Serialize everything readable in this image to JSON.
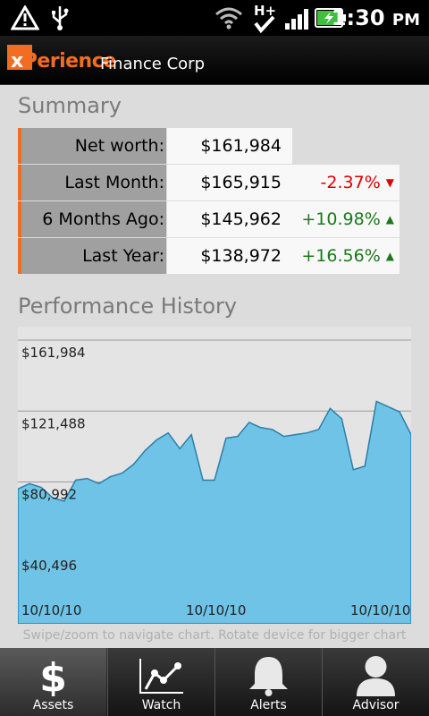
{
  "status_bar": {
    "time": "1:30",
    "ampm": "PM",
    "icons": [
      "warning-icon",
      "usb-icon",
      "wifi-icon",
      "hplus-data-icon",
      "signal-icon",
      "battery-charging-icon"
    ]
  },
  "header": {
    "logo_x": "x",
    "logo_rest": "Perience",
    "company": "Finance Corp"
  },
  "summary": {
    "title": "Summary",
    "rows": [
      {
        "label": "Net worth:",
        "value": "$161,984",
        "change": ""
      },
      {
        "label": "Last Month:",
        "value": "$165,915",
        "change": "-2.37%",
        "dir": "down"
      },
      {
        "label": "6 Months Ago:",
        "value": "$145,962",
        "change": "+10.98%",
        "dir": "up"
      },
      {
        "label": "Last Year:",
        "value": "$138,972",
        "change": "+16.56%",
        "dir": "up"
      }
    ]
  },
  "performance": {
    "title": "Performance History",
    "hint": "Swipe/zoom to navigate chart. Rotate device for bigger chart"
  },
  "chart_data": {
    "type": "area",
    "title": "",
    "xlabel": "",
    "ylabel": "",
    "ylim": [
      0,
      161984
    ],
    "y_ticks": [
      "$161,984",
      "$121,488",
      "$80,992",
      "$40,496"
    ],
    "x_tick_labels": [
      "10/10/10",
      "10/10/10",
      "10/10/10"
    ],
    "values": [
      77000,
      80000,
      78000,
      72000,
      70000,
      82000,
      83000,
      80000,
      84000,
      86000,
      91000,
      99000,
      105000,
      109000,
      100000,
      108000,
      82000,
      82000,
      106000,
      107000,
      115000,
      112000,
      111000,
      107000,
      108000,
      109000,
      111000,
      123000,
      117000,
      88000,
      90000,
      127000,
      124000,
      121000,
      108000
    ],
    "fill_color": "#6fc3e6",
    "line_color": "#2a7fa8",
    "grid": true
  },
  "tabs": [
    {
      "label": "Assets",
      "icon": "dollar-icon",
      "active": true
    },
    {
      "label": "Watch",
      "icon": "line-chart-icon",
      "active": false
    },
    {
      "label": "Alerts",
      "icon": "bell-icon",
      "active": false
    },
    {
      "label": "Advisor",
      "icon": "person-icon",
      "active": false
    }
  ]
}
